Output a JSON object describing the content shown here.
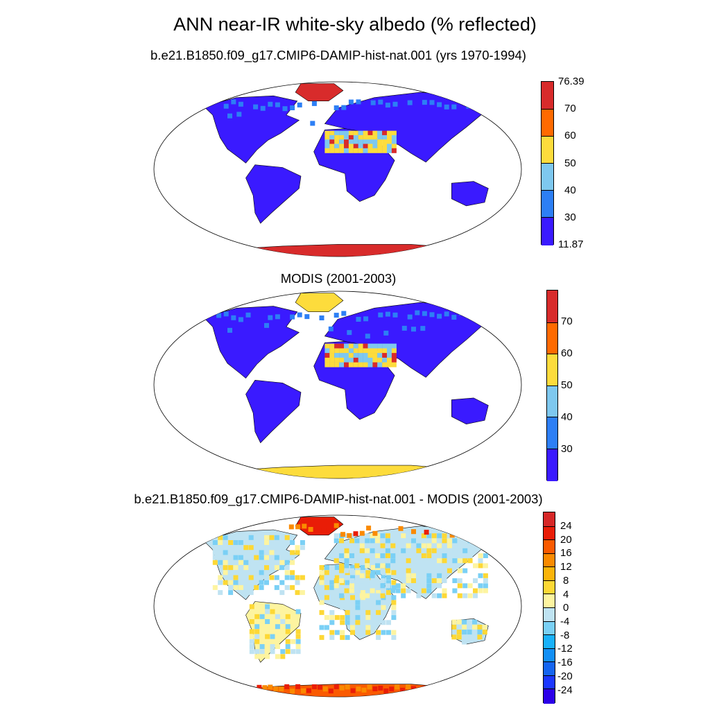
{
  "figure": {
    "title": "ANN near-IR white-sky albedo (% reflected)"
  },
  "panels": [
    {
      "id": "model",
      "subtitle": "b.e21.B1850.f09_g17.CMIP6-DAMIP-hist-nat.001 (yrs 1970-1994)",
      "colorbar": {
        "colors": [
          "#3a1aff",
          "#2d7ff5",
          "#7ec8ef",
          "#fddc3c",
          "#ff6a00",
          "#d82b2b"
        ],
        "labels": [
          "76.39",
          "70",
          "60",
          "50",
          "40",
          "30",
          "11.87"
        ],
        "min": 11.87,
        "max": 76.39,
        "levels": [
          30,
          40,
          50,
          60,
          70
        ]
      }
    },
    {
      "id": "obs",
      "subtitle": "MODIS (2001-2003)",
      "colorbar": {
        "colors": [
          "#3a1aff",
          "#2d7ff5",
          "#7ec8ef",
          "#fddc3c",
          "#ff6a00",
          "#d82b2b"
        ],
        "labels": [
          "70",
          "60",
          "50",
          "40",
          "30"
        ],
        "levels": [
          30,
          40,
          50,
          60,
          70
        ]
      }
    },
    {
      "id": "diff",
      "subtitle": "b.e21.B1850.f09_g17.CMIP6-DAMIP-hist-nat.001 - MODIS (2001-2003)",
      "colorbar": {
        "colors": [
          "#2c00e8",
          "#1c37ff",
          "#1565f0",
          "#128ff5",
          "#19b1fa",
          "#7ad0f5",
          "#bfe3f2",
          "#fdf4a0",
          "#fdd835",
          "#fbb40a",
          "#fa8a00",
          "#fa5a00",
          "#e91d07",
          "#d62828"
        ],
        "labels": [
          "24",
          "20",
          "16",
          "12",
          "8",
          "4",
          "0",
          "-4",
          "-8",
          "-12",
          "-16",
          "-20",
          "-24"
        ],
        "levels": [
          -24,
          -20,
          -16,
          -12,
          -8,
          -4,
          0,
          4,
          8,
          12,
          16,
          20,
          24
        ]
      }
    }
  ]
}
